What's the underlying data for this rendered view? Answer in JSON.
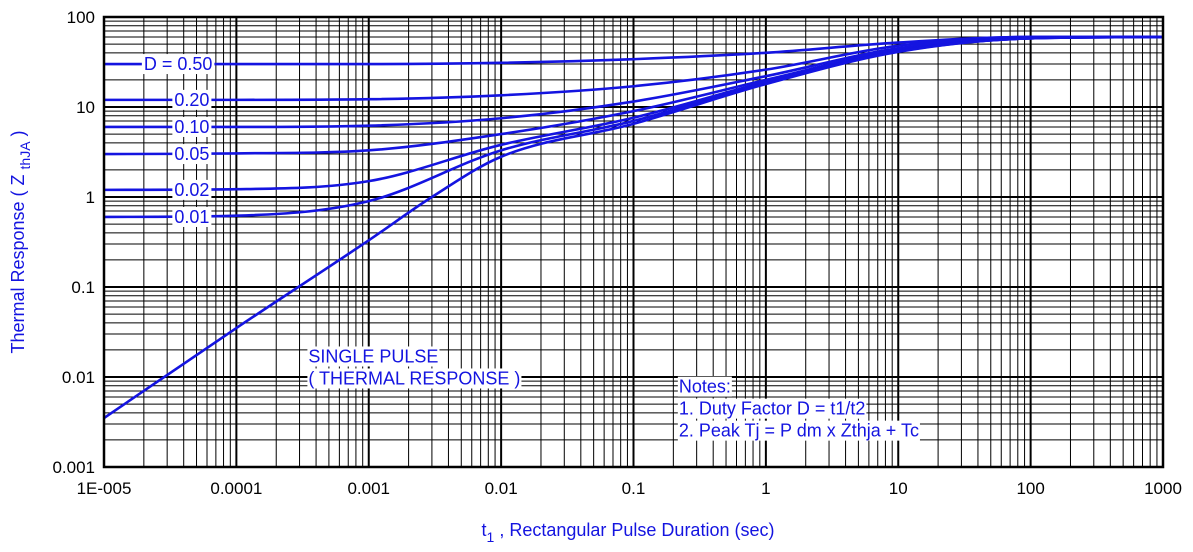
{
  "chart_data": {
    "type": "line",
    "x_scale": "log",
    "y_scale": "log",
    "xlim": [
      1e-05,
      1000
    ],
    "ylim": [
      0.001,
      100
    ],
    "grid": true,
    "x_ticks": [
      "1E-005",
      "0.0001",
      "0.001",
      "0.01",
      "0.1",
      "1",
      "10",
      "100",
      "1000"
    ],
    "y_ticks": [
      "0.001",
      "0.01",
      "0.1",
      "1",
      "10",
      "100"
    ],
    "xlabel": {
      "main": "t",
      "sub": "1",
      "rest": " , Rectangular Pulse Duration (sec)"
    },
    "ylabel": {
      "main": "Thermal Response ( Z ",
      "sub": "thJA",
      "rest": " )"
    },
    "line_color": "#1414e0",
    "series": [
      {
        "name": "D = 0.50",
        "x": [
          1e-05,
          0.0001,
          0.001,
          0.01,
          0.1,
          1,
          10,
          100,
          1000
        ],
        "y": [
          30,
          30,
          30,
          31,
          34,
          40,
          52,
          60,
          60
        ]
      },
      {
        "name": "0.20",
        "x": [
          1e-05,
          0.0001,
          0.001,
          0.01,
          0.1,
          1,
          10,
          100,
          1000
        ],
        "y": [
          12,
          12,
          12.2,
          13.5,
          17,
          26,
          48,
          60,
          60
        ]
      },
      {
        "name": "0.10",
        "x": [
          1e-05,
          0.0001,
          0.001,
          0.01,
          0.1,
          1,
          10,
          100,
          1000
        ],
        "y": [
          6,
          6,
          6.2,
          7.5,
          11.5,
          22,
          45,
          59,
          60
        ]
      },
      {
        "name": "0.05",
        "x": [
          1e-05,
          0.0001,
          0.001,
          0.01,
          0.1,
          1,
          10,
          100,
          1000
        ],
        "y": [
          3,
          3.05,
          3.3,
          5,
          9,
          20,
          43,
          58,
          60
        ]
      },
      {
        "name": "0.02",
        "x": [
          1e-05,
          0.0001,
          0.001,
          0.01,
          0.1,
          1,
          10,
          100,
          1000
        ],
        "y": [
          1.2,
          1.22,
          1.5,
          3.8,
          7.6,
          19,
          42,
          58,
          60
        ]
      },
      {
        "name": "0.01",
        "x": [
          1e-05,
          0.0001,
          0.001,
          0.01,
          0.1,
          1,
          10,
          100,
          1000
        ],
        "y": [
          0.6,
          0.62,
          0.9,
          3.3,
          7,
          18.5,
          41.5,
          58,
          60
        ]
      },
      {
        "name": "SINGLE PULSE ( THERMAL RESPONSE )",
        "x": [
          1e-05,
          0.0001,
          0.001,
          0.003,
          0.01,
          0.1,
          1,
          10,
          100,
          1000
        ],
        "y": [
          0.0035,
          0.035,
          0.33,
          1.0,
          2.8,
          6.5,
          18,
          41,
          58,
          60
        ]
      }
    ],
    "annotations": {
      "single_pulse": [
        "SINGLE PULSE",
        "( THERMAL RESPONSE )"
      ],
      "notes": [
        "Notes:",
        "1. Duty Factor D = t1/t2",
        "2. Peak Tj = P dm x Zthja + Tc"
      ]
    }
  }
}
